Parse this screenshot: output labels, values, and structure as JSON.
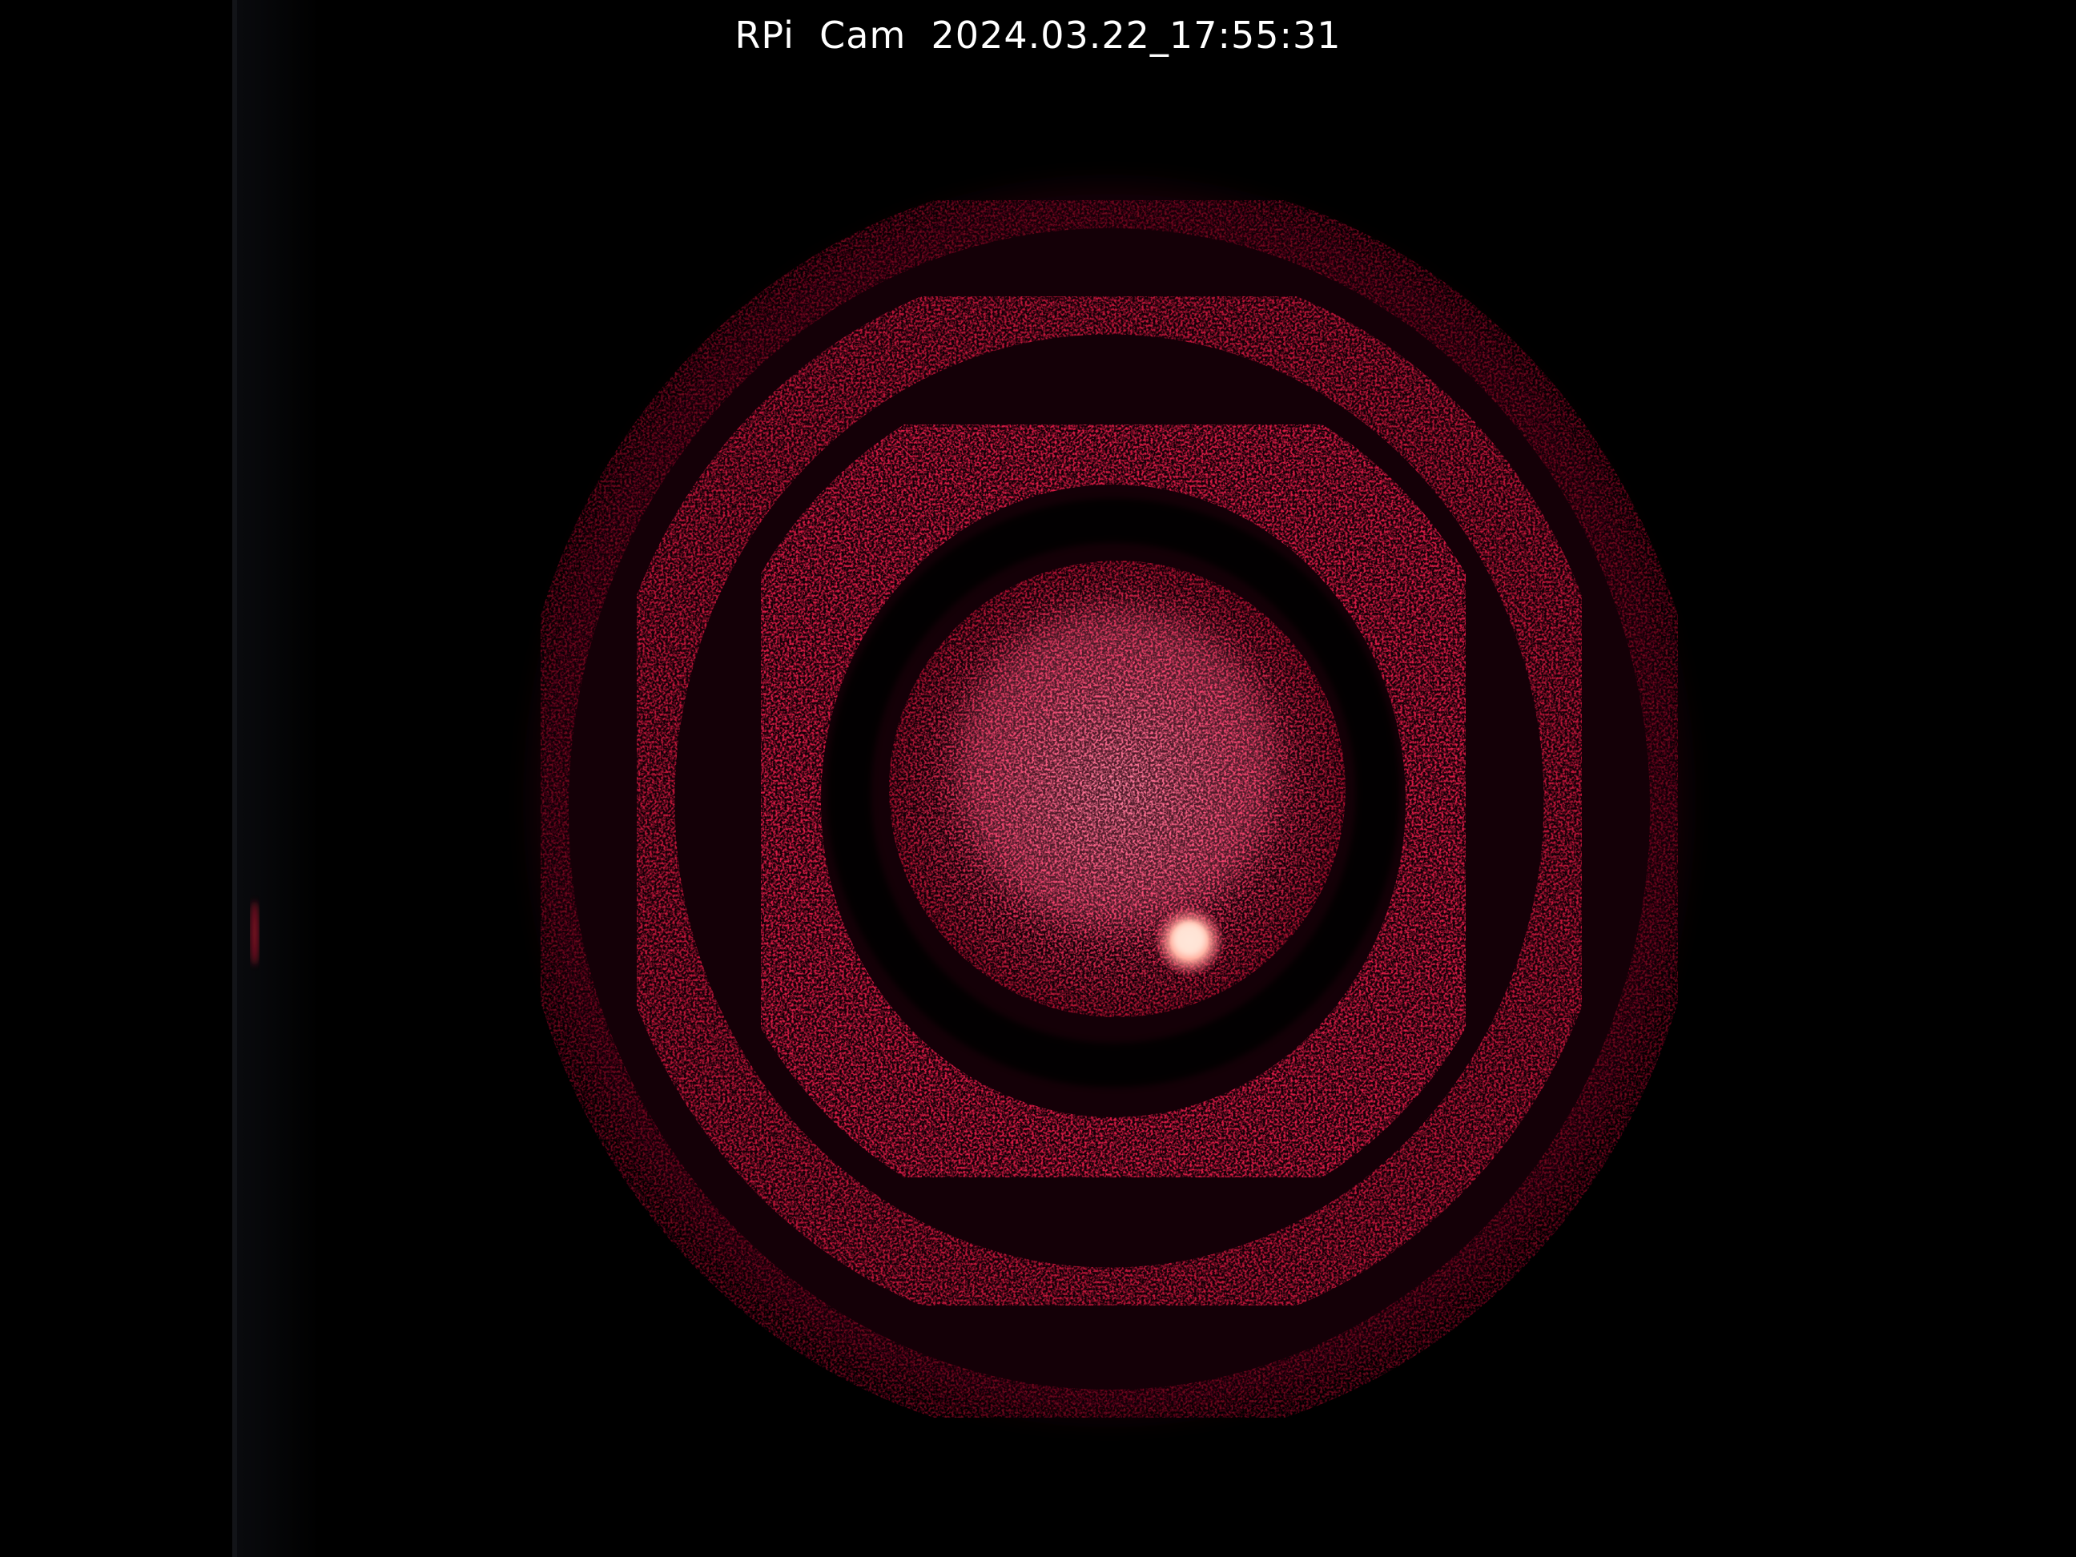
{
  "camera": {
    "name": "RPi Cam",
    "timestamp": "2024.03.22_17:55:31"
  },
  "overlay": {
    "text": "RPi  Cam  2024.03.22_17:55:31"
  },
  "colors": {
    "background": "#000000",
    "ring": "#c8163c",
    "core": "#ff4f7a",
    "hotspot": "#ffd0c8",
    "overlay_text": "#ffffff"
  }
}
